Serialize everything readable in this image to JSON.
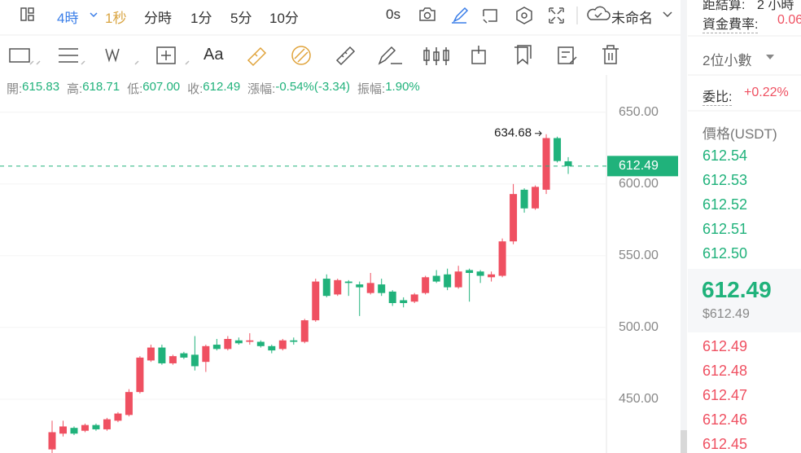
{
  "toolbar": {
    "intervals": [
      "4時",
      "1秒",
      "分時",
      "1分",
      "5分",
      "10分"
    ],
    "countdown": "0s",
    "layout_name": "未命名"
  },
  "drawing_tools": {
    "text_tool": "Aa"
  },
  "ohlc_bar": [
    {
      "label": "開:",
      "value": "615.83"
    },
    {
      "label": "高:",
      "value": "618.71"
    },
    {
      "label": "低:",
      "value": "607.00"
    },
    {
      "label": "收:",
      "value": "612.49"
    },
    {
      "label": "漲幅:",
      "value": "-0.54%(-3.34)"
    },
    {
      "label": "振幅:",
      "value": "1.90%"
    }
  ],
  "chart_data": {
    "type": "candlestick",
    "open": [
      415,
      426,
      430,
      428,
      432,
      429,
      435,
      439,
      455,
      477,
      486,
      475,
      482,
      481,
      476,
      488,
      485,
      491,
      490,
      490,
      487,
      485,
      491,
      490,
      505,
      534,
      523,
      532,
      530,
      524,
      530,
      525,
      519,
      518,
      524,
      536,
      537,
      528,
      540,
      539,
      535,
      536,
      560,
      596,
      583,
      596,
      632,
      615.83
    ],
    "high": [
      435,
      435,
      431,
      433,
      433,
      437,
      441,
      457,
      480,
      488,
      488,
      481,
      483,
      494,
      488,
      492,
      494,
      493,
      496,
      491,
      488,
      492,
      493,
      506,
      534,
      537,
      534,
      533,
      532,
      538,
      534,
      526,
      521,
      524,
      536,
      540,
      541,
      543,
      541,
      540,
      539,
      562,
      600,
      597,
      599,
      634.68,
      633,
      618.71
    ],
    "low": [
      412,
      424,
      425,
      427,
      428,
      428,
      434,
      438,
      454,
      476,
      474,
      474,
      478,
      470,
      469,
      484,
      484,
      488,
      488,
      486,
      482,
      484,
      488,
      489,
      504,
      521,
      522,
      522,
      508,
      523,
      522,
      515,
      514,
      517,
      523,
      531,
      526,
      527,
      518,
      531,
      532,
      535,
      558,
      580,
      582,
      593,
      615,
      607
    ],
    "close": [
      427,
      431,
      426,
      432,
      429,
      436,
      440,
      455,
      479,
      486,
      475,
      480,
      479,
      473,
      487,
      485,
      492,
      489,
      491,
      487,
      484,
      491,
      490,
      505,
      532,
      522,
      533,
      531,
      528,
      531,
      524,
      517,
      517,
      523,
      535,
      532,
      528,
      539,
      538,
      536,
      537,
      560,
      593,
      583,
      598,
      632,
      616,
      612.49
    ],
    "up_color": "#ef5061",
    "down_color": "#20b27b",
    "ylim": [
      412.5,
      676
    ],
    "yticks": [
      {
        "value": 450,
        "label": "450.00"
      },
      {
        "value": 500,
        "label": "500.00"
      },
      {
        "value": 550,
        "label": "550.00"
      },
      {
        "value": 600,
        "label": "600.00"
      },
      {
        "value": 650,
        "label": "650.00"
      }
    ],
    "grid": true,
    "last_price": {
      "value": 612.49,
      "label": "612.49"
    },
    "annotation": {
      "value": 634.68,
      "label": "634.68"
    }
  },
  "order_book": {
    "settlement_label": "距結算:",
    "settlement_value": "2 小時",
    "funding_label": "資金費率:",
    "funding_value": "0.06",
    "precision": "2位小數",
    "ratio_label": "委比:",
    "ratio_value": "+0.22%",
    "price_header": "價格(USDT)",
    "asks": [
      "612.54",
      "612.53",
      "612.52",
      "612.51",
      "612.50"
    ],
    "last": "612.49",
    "last_usd": "$612.49",
    "bids": [
      "612.49",
      "612.48",
      "612.47",
      "612.46",
      "612.45"
    ]
  }
}
